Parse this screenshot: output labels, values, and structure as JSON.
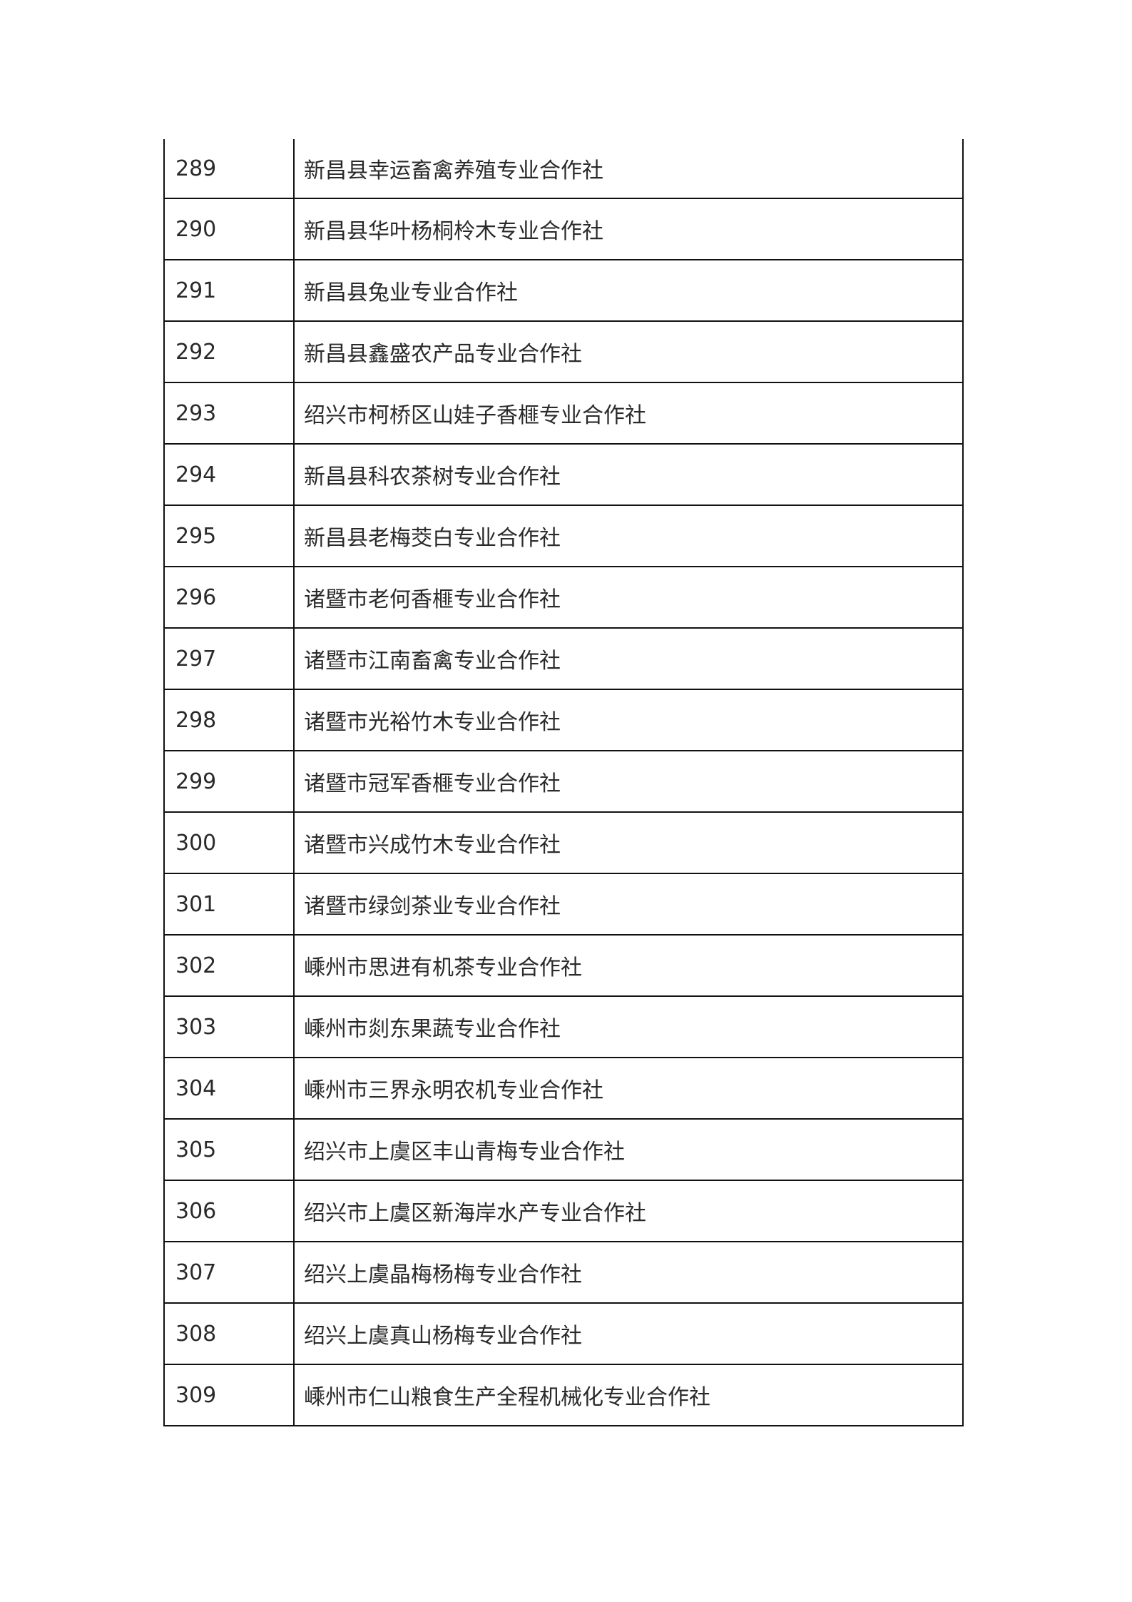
{
  "table": {
    "rows": [
      {
        "no": "289",
        "name": "新昌县幸运畜禽养殖专业合作社"
      },
      {
        "no": "290",
        "name": "新昌县华叶杨桐柃木专业合作社"
      },
      {
        "no": "291",
        "name": "新昌县兔业专业合作社"
      },
      {
        "no": "292",
        "name": "新昌县鑫盛农产品专业合作社"
      },
      {
        "no": "293",
        "name": "绍兴市柯桥区山娃子香榧专业合作社"
      },
      {
        "no": "294",
        "name": "新昌县科农茶树专业合作社"
      },
      {
        "no": "295",
        "name": "新昌县老梅茭白专业合作社"
      },
      {
        "no": "296",
        "name": "诸暨市老何香榧专业合作社"
      },
      {
        "no": "297",
        "name": "诸暨市江南畜禽专业合作社"
      },
      {
        "no": "298",
        "name": "诸暨市光裕竹木专业合作社"
      },
      {
        "no": "299",
        "name": "诸暨市冠军香榧专业合作社"
      },
      {
        "no": "300",
        "name": "诸暨市兴成竹木专业合作社"
      },
      {
        "no": "301",
        "name": "诸暨市绿剑茶业专业合作社"
      },
      {
        "no": "302",
        "name": "嵊州市思进有机茶专业合作社"
      },
      {
        "no": "303",
        "name": "嵊州市剡东果蔬专业合作社"
      },
      {
        "no": "304",
        "name": "嵊州市三界永明农机专业合作社"
      },
      {
        "no": "305",
        "name": "绍兴市上虞区丰山青梅专业合作社"
      },
      {
        "no": "306",
        "name": "绍兴市上虞区新海岸水产专业合作社"
      },
      {
        "no": "307",
        "name": "绍兴上虞晶梅杨梅专业合作社"
      },
      {
        "no": "308",
        "name": "绍兴上虞真山杨梅专业合作社"
      },
      {
        "no": "309",
        "name": "嵊州市仁山粮食生产全程机械化专业合作社"
      }
    ]
  }
}
